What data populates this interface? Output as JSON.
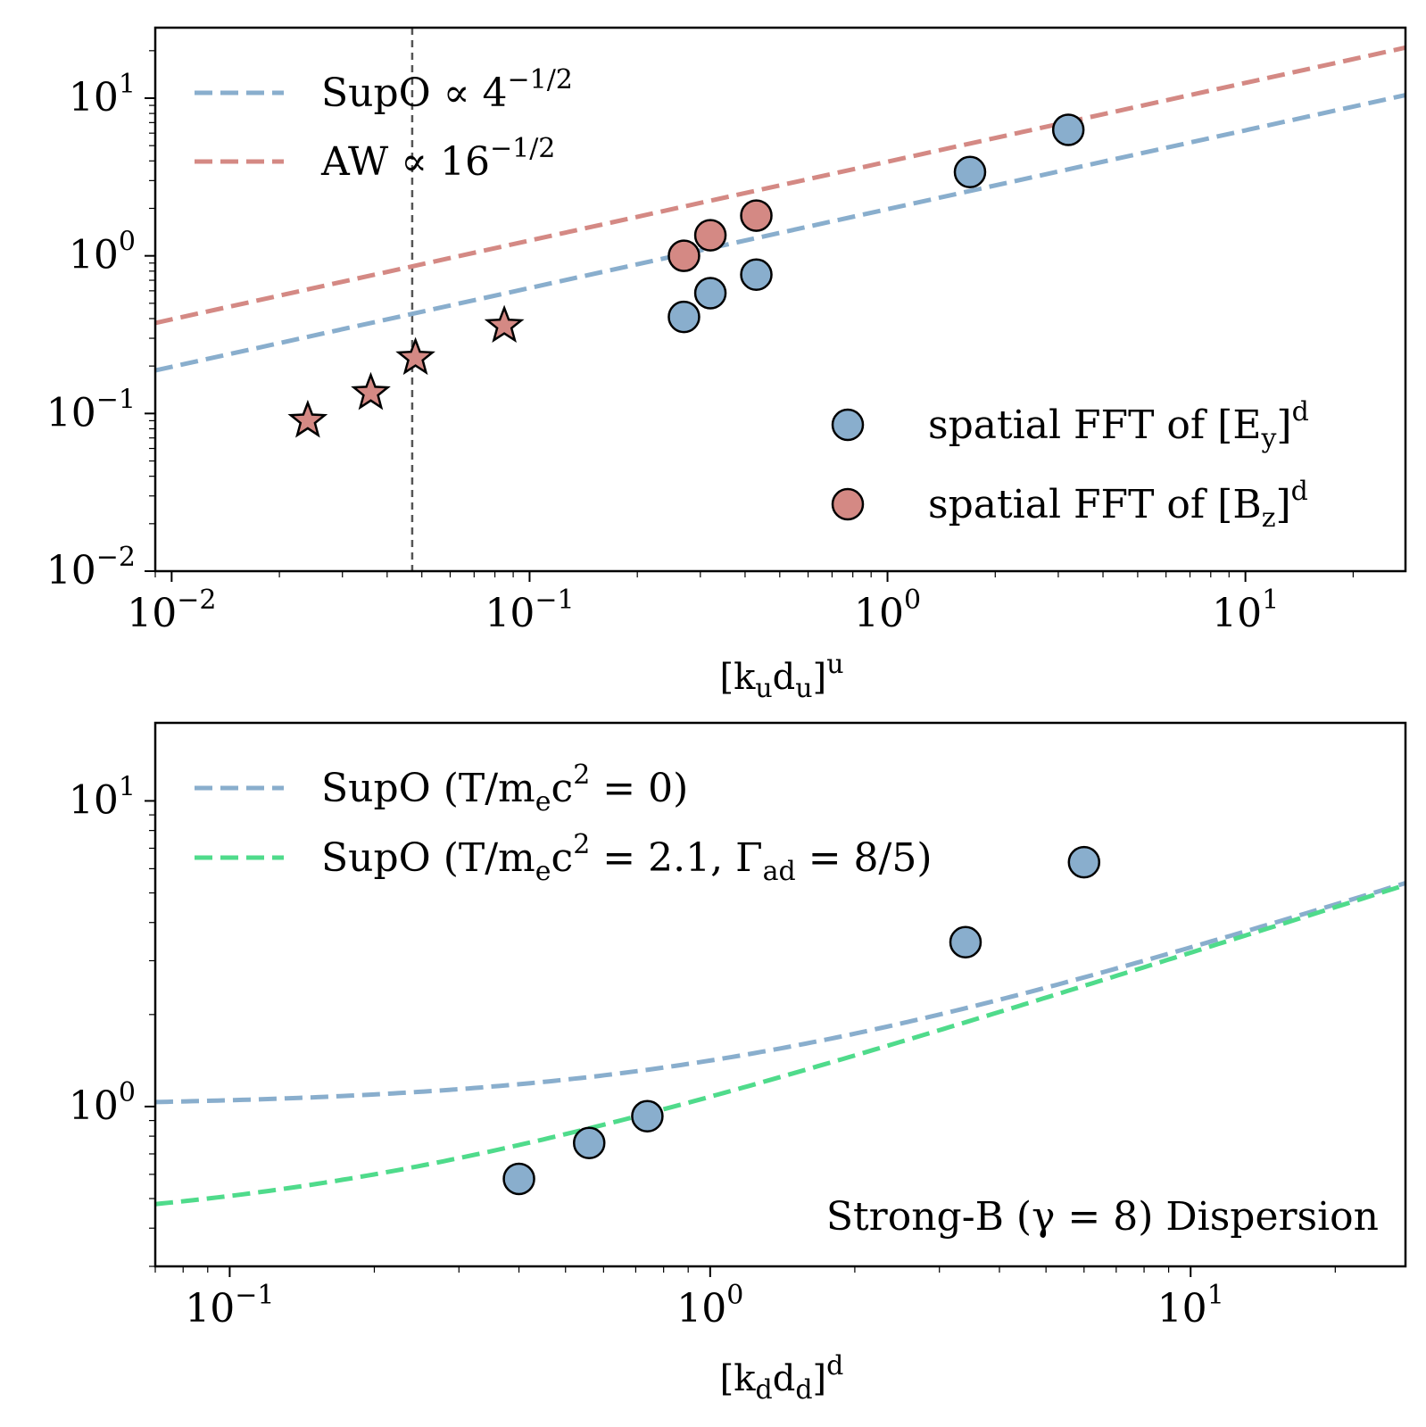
{
  "chart_data": [
    {
      "type": "scatter",
      "scale": "loglog",
      "xlabel": {
        "base": "[k",
        "sub1": "u",
        "mid": "d",
        "sub2": "u",
        "end": "]",
        "sup": "u"
      },
      "xlim": [
        0.009,
        28
      ],
      "ylim": [
        0.01,
        28
      ],
      "xticks": [
        {
          "value": 0.01,
          "base": "10",
          "exp": "−2"
        },
        {
          "value": 0.1,
          "base": "10",
          "exp": "−1"
        },
        {
          "value": 1,
          "base": "10",
          "exp": "0"
        },
        {
          "value": 10,
          "base": "10",
          "exp": "1"
        }
      ],
      "yticks": [
        {
          "value": 0.01,
          "base": "10",
          "exp": "−2"
        },
        {
          "value": 0.1,
          "base": "10",
          "exp": "−1"
        },
        {
          "value": 1,
          "base": "10",
          "exp": "0"
        },
        {
          "value": 10,
          "base": "10",
          "exp": "1"
        }
      ],
      "vline_x": 0.047,
      "lines": [
        {
          "name": "SupO",
          "coef": 1.977,
          "color": "#89aecd",
          "legend_text": "SupO  ∝ 4",
          "legend_sup": "−1/2"
        },
        {
          "name": "AW",
          "coef": 3.954,
          "color": "#d48984",
          "legend_text": "AW  ∝ 16",
          "legend_sup": "−1/2"
        }
      ],
      "points_blue": {
        "x": [
          0.27,
          0.32,
          0.43,
          1.7,
          3.2
        ],
        "y": [
          0.41,
          0.58,
          0.76,
          3.4,
          6.3
        ]
      },
      "points_red": {
        "x": [
          0.27,
          0.32,
          0.43
        ],
        "y": [
          1.0,
          1.35,
          1.8
        ]
      },
      "stars": {
        "x": [
          0.024,
          0.036,
          0.048,
          0.085
        ],
        "y": [
          0.09,
          0.135,
          0.225,
          0.36
        ]
      },
      "marker_legend": [
        {
          "pre": "spatial FFT of [E",
          "sub": "y",
          "post": "]",
          "sup": "d",
          "color": "#89aecd"
        },
        {
          "pre": "spatial FFT of [B",
          "sub": "z",
          "post": "]",
          "sup": "d",
          "color": "#d48984"
        }
      ]
    },
    {
      "type": "scatter",
      "scale": "loglog",
      "xlabel": {
        "base": "[k",
        "sub1": "d",
        "mid": "d",
        "sub2": "d",
        "end": "]",
        "sup": "d"
      },
      "xlim": [
        0.07,
        28
      ],
      "ylim": [
        0.3,
        18
      ],
      "xticks": [
        {
          "value": 0.1,
          "base": "10",
          "exp": "−1"
        },
        {
          "value": 1,
          "base": "10",
          "exp": "0"
        },
        {
          "value": 10,
          "base": "10",
          "exp": "1"
        }
      ],
      "yticks": [
        {
          "value": 1,
          "base": "10",
          "exp": "0"
        },
        {
          "value": 10,
          "base": "10",
          "exp": "1"
        }
      ],
      "curves": [
        {
          "name": "SupO cold",
          "offset": 1.0,
          "color": "#89aecd",
          "legend_text": "SupO (T/m",
          "legend_sub": "e",
          "legend_text2": "c",
          "legend_sup": "2",
          "legend_text3": " = 0)"
        },
        {
          "name": "SupO hot",
          "offset": 0.4,
          "color": "#4fdb8b",
          "legend_text": "SupO (T/m",
          "legend_sub": "e",
          "legend_text2": "c",
          "legend_sup": "2",
          "legend_text3": " = 2.1, Γ",
          "legend_sub2": "ad",
          "legend_text4": " = 8/5)"
        }
      ],
      "points_blue": {
        "x": [
          0.4,
          0.56,
          0.74,
          3.4,
          6.0
        ],
        "y": [
          0.58,
          0.76,
          0.93,
          3.45,
          6.3
        ]
      },
      "annotation": "Strong-B (γ = 8) Dispersion"
    }
  ]
}
